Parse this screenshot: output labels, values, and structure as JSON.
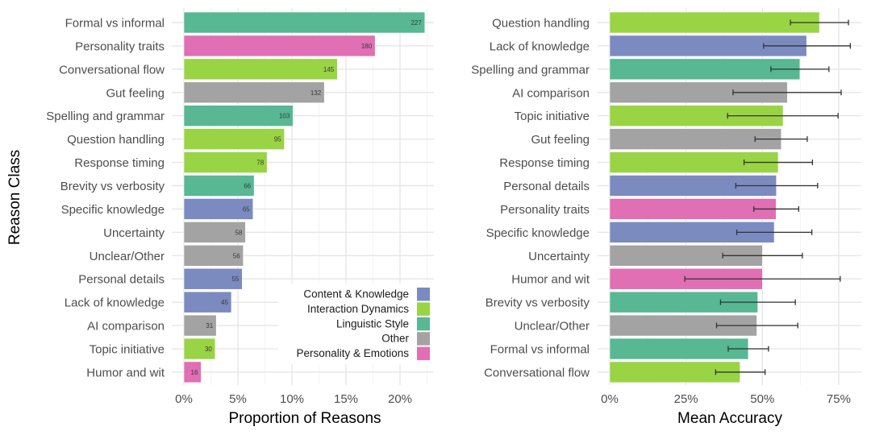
{
  "chart_data": [
    {
      "type": "bar",
      "orientation": "horizontal",
      "title": "",
      "xlabel": "Proportion of Reasons",
      "ylabel": "Reason Class",
      "xlim": [
        0,
        23.2
      ],
      "xticks": [
        0,
        5,
        10,
        15,
        20
      ],
      "xtick_labels": [
        "0%",
        "5%",
        "10%",
        "15%",
        "20%"
      ],
      "grid": true,
      "legend_position": "bottom-right (inside)",
      "legend": [
        {
          "name": "Content & Knowledge",
          "color": "#7B8BC0"
        },
        {
          "name": "Interaction Dynamics",
          "color": "#99D444"
        },
        {
          "name": "Linguistic Style",
          "color": "#57B893"
        },
        {
          "name": "Other",
          "color": "#A3A3A3"
        },
        {
          "name": "Personality & Emotions",
          "color": "#E06FB4"
        }
      ],
      "categories": [
        "Formal vs informal",
        "Personality traits",
        "Conversational flow",
        "Gut feeling",
        "Spelling and grammar",
        "Question handling",
        "Response timing",
        "Brevity vs verbosity",
        "Specific knowledge",
        "Uncertainty",
        "Unclear/Other",
        "Personal details",
        "Lack of knowledge",
        "AI comparison",
        "Topic initiative",
        "Humor and wit"
      ],
      "groups": [
        "Linguistic Style",
        "Personality & Emotions",
        "Interaction Dynamics",
        "Other",
        "Linguistic Style",
        "Interaction Dynamics",
        "Interaction Dynamics",
        "Linguistic Style",
        "Content & Knowledge",
        "Other",
        "Other",
        "Content & Knowledge",
        "Content & Knowledge",
        "Other",
        "Interaction Dynamics",
        "Personality & Emotions"
      ],
      "counts": [
        227,
        180,
        145,
        132,
        103,
        95,
        78,
        66,
        65,
        58,
        56,
        55,
        45,
        31,
        30,
        16
      ],
      "values_percent": [
        22.3,
        17.7,
        14.2,
        13.0,
        10.1,
        9.3,
        7.7,
        6.5,
        6.4,
        5.7,
        5.5,
        5.4,
        4.4,
        3.0,
        2.9,
        1.6
      ]
    },
    {
      "type": "bar",
      "orientation": "horizontal",
      "title": "",
      "xlabel": "Mean Accuracy",
      "ylabel": "",
      "xlim": [
        0,
        82.5
      ],
      "xticks": [
        0,
        25,
        50,
        75
      ],
      "xtick_labels": [
        "0%",
        "25%",
        "50%",
        "75%"
      ],
      "grid": true,
      "error_bars": true,
      "categories": [
        "Question handling",
        "Lack of knowledge",
        "Spelling and grammar",
        "AI comparison",
        "Topic initiative",
        "Gut feeling",
        "Response timing",
        "Personal details",
        "Personality traits",
        "Specific knowledge",
        "Uncertainty",
        "Humor and wit",
        "Brevity vs verbosity",
        "Unclear/Other",
        "Formal vs informal",
        "Conversational flow"
      ],
      "groups": [
        "Interaction Dynamics",
        "Content & Knowledge",
        "Linguistic Style",
        "Other",
        "Interaction Dynamics",
        "Other",
        "Interaction Dynamics",
        "Content & Knowledge",
        "Personality & Emotions",
        "Content & Knowledge",
        "Other",
        "Personality & Emotions",
        "Linguistic Style",
        "Other",
        "Linguistic Style",
        "Interaction Dynamics"
      ],
      "values_percent": [
        68.7,
        64.5,
        62.3,
        58.2,
        56.8,
        56.2,
        55.2,
        54.6,
        54.5,
        53.9,
        50.0,
        50.0,
        48.5,
        48.2,
        45.4,
        42.7
      ],
      "error_low": [
        59.2,
        50.4,
        52.8,
        40.4,
        38.6,
        47.6,
        44.0,
        41.3,
        47.2,
        41.6,
        37.0,
        24.6,
        36.3,
        35.0,
        38.8,
        34.7
      ],
      "error_high": [
        78.2,
        78.8,
        71.8,
        75.8,
        74.8,
        64.7,
        66.4,
        68.1,
        61.9,
        66.2,
        63.1,
        75.5,
        60.8,
        61.6,
        52.0,
        50.9
      ]
    }
  ]
}
